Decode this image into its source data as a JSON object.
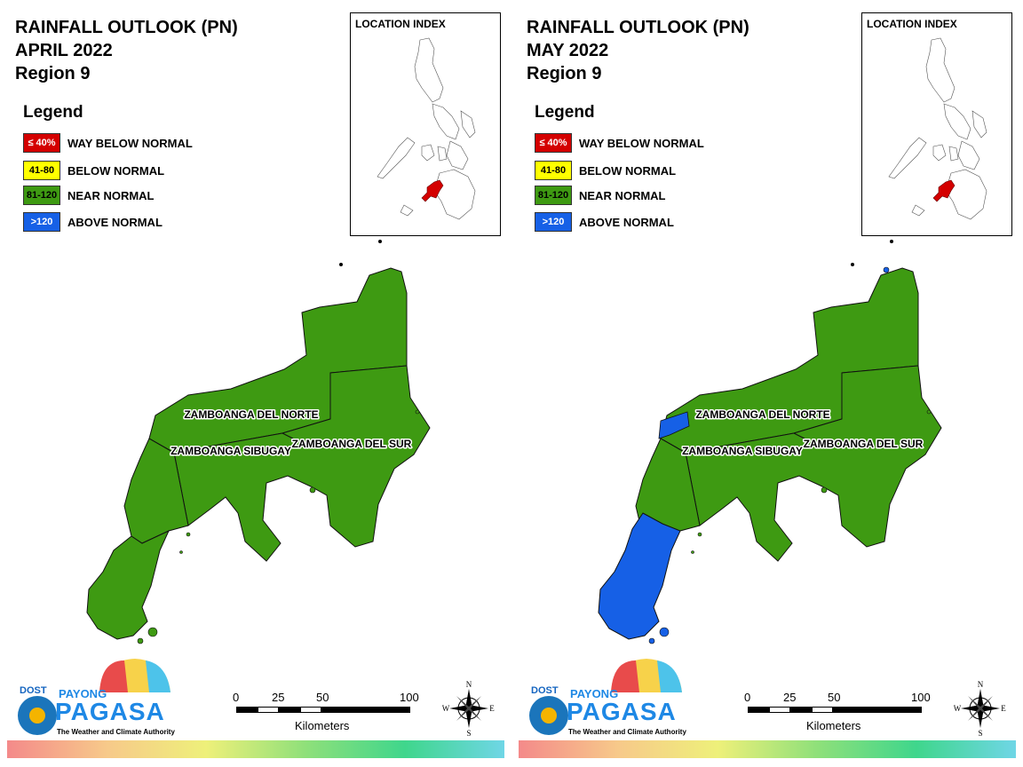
{
  "panels": [
    {
      "title_line1": "RAINFALL OUTLOOK (PN)",
      "title_line2": "APRIL 2022",
      "title_line3": "Region 9",
      "zone_colors": {
        "north": "#3e9a12",
        "west": "#3e9a12",
        "south": "#3e9a12",
        "tip": "#3e9a12"
      }
    },
    {
      "title_line1": "RAINFALL OUTLOOK (PN)",
      "title_line2": "MAY 2022",
      "title_line3": "Region 9",
      "zone_colors": {
        "north": "#3e9a12",
        "west": "#1660e6",
        "south": "#1660e6",
        "tip": "#1660e6"
      }
    }
  ],
  "legend": {
    "title": "Legend",
    "items": [
      {
        "range": "≤ 40%",
        "label": "WAY BELOW NORMAL",
        "color": "#d40000",
        "text_color": "#ffffff"
      },
      {
        "range": "41-80",
        "label": "BELOW NORMAL",
        "color": "#ffff00",
        "text_color": "#000000"
      },
      {
        "range": "81-120",
        "label": "NEAR NORMAL",
        "color": "#3e9a12",
        "text_color": "#000000"
      },
      {
        "range": ">120",
        "label": "ABOVE NORMAL",
        "color": "#1660e6",
        "text_color": "#ffffff"
      }
    ]
  },
  "location_index": {
    "title": "LOCATION INDEX",
    "highlight_color": "#d40000"
  },
  "provinces": {
    "north": "ZAMBOANGA DEL NORTE",
    "sibugay": "ZAMBOANGA SIBUGAY",
    "south": "ZAMBOANGA DEL SUR"
  },
  "logo": {
    "dost": "DOST",
    "payong": "PAYONG",
    "pagasa": "PAGASA",
    "tagline": "The Weather and Climate Authority"
  },
  "scale": {
    "ticks": [
      "0",
      "25",
      "50",
      "100"
    ],
    "unit": "Kilometers"
  },
  "compass": {
    "n": "N",
    "s": "S",
    "e": "E",
    "w": "W"
  },
  "colors": {
    "near_normal": "#3e9a12",
    "above_normal": "#1660e6",
    "way_below": "#d40000",
    "below": "#ffff00"
  }
}
